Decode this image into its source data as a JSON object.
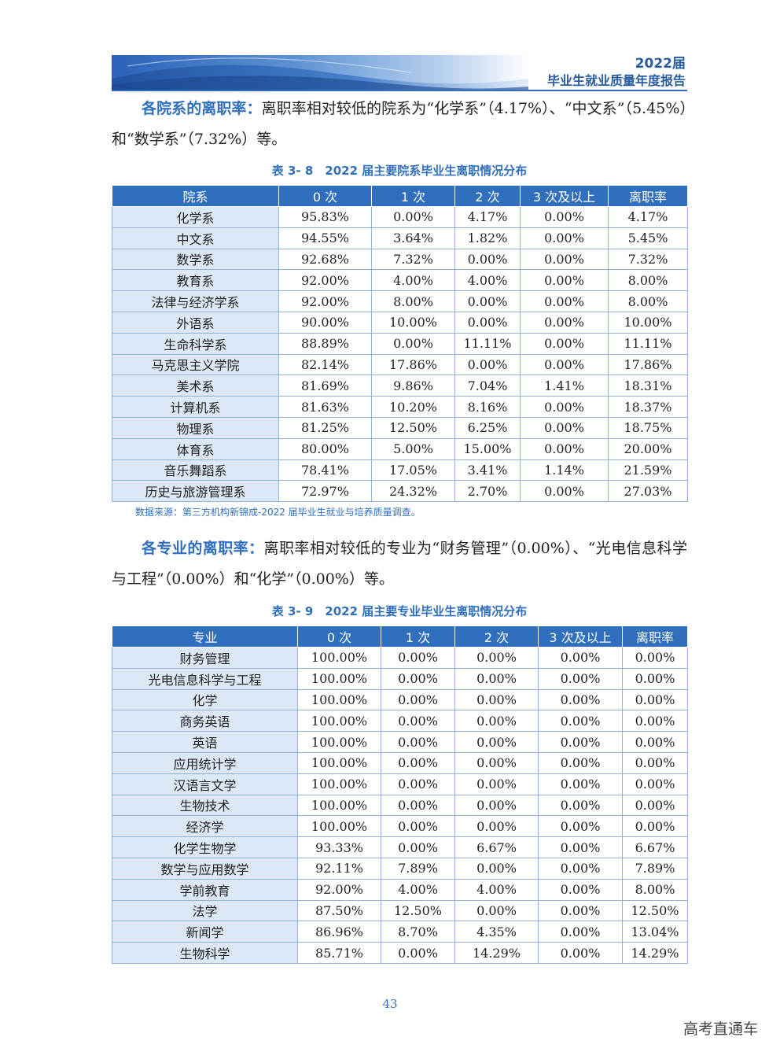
{
  "header": {
    "year": "2022届",
    "title": "毕业生就业质量年度报告"
  },
  "section1": {
    "lead": "各院系的离职率：",
    "text": "离职率相对较低的院系为“化学系”（4.17%）、“中文系”（5.45%）和“数学系”（7.32%）等。"
  },
  "table1": {
    "caption": "表 3- 8　2022 届主要院系毕业生离职情况分布",
    "headers": [
      "院系",
      "0 次",
      "1 次",
      "2 次",
      "3 次及以上",
      "离职率"
    ],
    "rows": [
      [
        "化学系",
        "95.83%",
        "0.00%",
        "4.17%",
        "0.00%",
        "4.17%"
      ],
      [
        "中文系",
        "94.55%",
        "3.64%",
        "1.82%",
        "0.00%",
        "5.45%"
      ],
      [
        "数学系",
        "92.68%",
        "7.32%",
        "0.00%",
        "0.00%",
        "7.32%"
      ],
      [
        "教育系",
        "92.00%",
        "4.00%",
        "4.00%",
        "0.00%",
        "8.00%"
      ],
      [
        "法律与经济学系",
        "92.00%",
        "8.00%",
        "0.00%",
        "0.00%",
        "8.00%"
      ],
      [
        "外语系",
        "90.00%",
        "10.00%",
        "0.00%",
        "0.00%",
        "10.00%"
      ],
      [
        "生命科学系",
        "88.89%",
        "0.00%",
        "11.11%",
        "0.00%",
        "11.11%"
      ],
      [
        "马克思主义学院",
        "82.14%",
        "17.86%",
        "0.00%",
        "0.00%",
        "17.86%"
      ],
      [
        "美术系",
        "81.69%",
        "9.86%",
        "7.04%",
        "1.41%",
        "18.31%"
      ],
      [
        "计算机系",
        "81.63%",
        "10.20%",
        "8.16%",
        "0.00%",
        "18.37%"
      ],
      [
        "物理系",
        "81.25%",
        "12.50%",
        "6.25%",
        "0.00%",
        "18.75%"
      ],
      [
        "体育系",
        "80.00%",
        "5.00%",
        "15.00%",
        "0.00%",
        "20.00%"
      ],
      [
        "音乐舞蹈系",
        "78.41%",
        "17.05%",
        "3.41%",
        "1.14%",
        "21.59%"
      ],
      [
        "历史与旅游管理系",
        "72.97%",
        "24.32%",
        "2.70%",
        "0.00%",
        "27.03%"
      ]
    ]
  },
  "source": "数据来源：第三方机构新锦成-2022 届毕业生就业与培养质量调查。",
  "section2": {
    "lead": "各专业的离职率：",
    "text": "离职率相对较低的专业为“财务管理”（0.00%）、“光电信息科学与工程”（0.00%）和“化学”（0.00%）等。"
  },
  "table2": {
    "caption": "表 3- 9　2022 届主要专业毕业生离职情况分布",
    "headers": [
      "专业",
      "0 次",
      "1 次",
      "2 次",
      "3 次及以上",
      "离职率"
    ],
    "rows": [
      [
        "财务管理",
        "100.00%",
        "0.00%",
        "0.00%",
        "0.00%",
        "0.00%"
      ],
      [
        "光电信息科学与工程",
        "100.00%",
        "0.00%",
        "0.00%",
        "0.00%",
        "0.00%"
      ],
      [
        "化学",
        "100.00%",
        "0.00%",
        "0.00%",
        "0.00%",
        "0.00%"
      ],
      [
        "商务英语",
        "100.00%",
        "0.00%",
        "0.00%",
        "0.00%",
        "0.00%"
      ],
      [
        "英语",
        "100.00%",
        "0.00%",
        "0.00%",
        "0.00%",
        "0.00%"
      ],
      [
        "应用统计学",
        "100.00%",
        "0.00%",
        "0.00%",
        "0.00%",
        "0.00%"
      ],
      [
        "汉语言文学",
        "100.00%",
        "0.00%",
        "0.00%",
        "0.00%",
        "0.00%"
      ],
      [
        "生物技术",
        "100.00%",
        "0.00%",
        "0.00%",
        "0.00%",
        "0.00%"
      ],
      [
        "经济学",
        "100.00%",
        "0.00%",
        "0.00%",
        "0.00%",
        "0.00%"
      ],
      [
        "化学生物学",
        "93.33%",
        "0.00%",
        "6.67%",
        "0.00%",
        "6.67%"
      ],
      [
        "数学与应用数学",
        "92.11%",
        "7.89%",
        "0.00%",
        "0.00%",
        "7.89%"
      ],
      [
        "学前教育",
        "92.00%",
        "4.00%",
        "4.00%",
        "0.00%",
        "8.00%"
      ],
      [
        "法学",
        "87.50%",
        "12.50%",
        "0.00%",
        "0.00%",
        "12.50%"
      ],
      [
        "新闻学",
        "86.96%",
        "8.70%",
        "4.35%",
        "0.00%",
        "13.04%"
      ],
      [
        "生物科学",
        "85.71%",
        "0.00%",
        "14.29%",
        "0.00%",
        "14.29%"
      ]
    ]
  },
  "page_number": "43",
  "watermark": "高考直通车"
}
